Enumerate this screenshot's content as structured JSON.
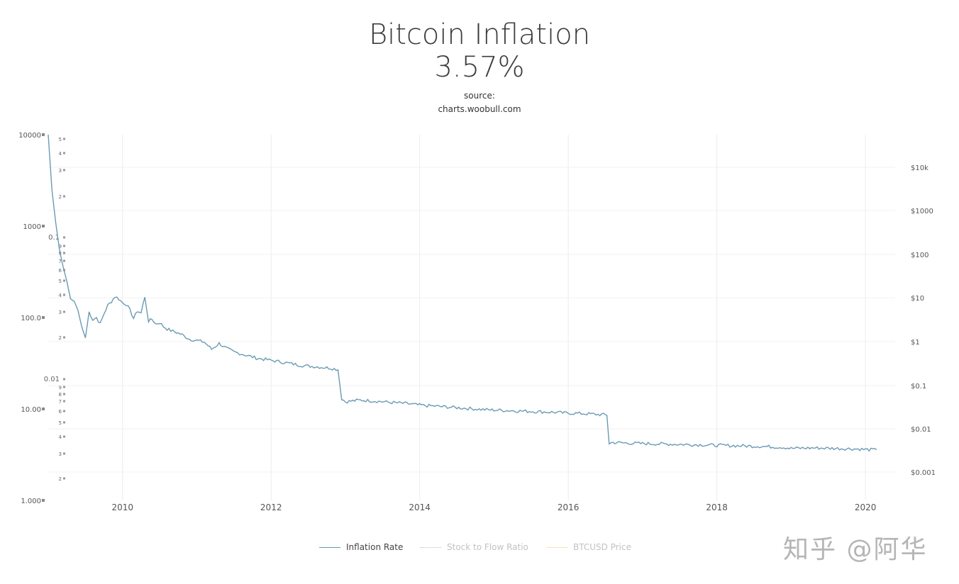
{
  "chart_data": {
    "type": "line",
    "title": "Bitcoin Inflation",
    "subtitle": "3.57%",
    "source_label": "source:",
    "source_url": "charts.woobull.com",
    "x_ticks": [
      "2010",
      "2012",
      "2014",
      "2016",
      "2018",
      "2020"
    ],
    "xlim": [
      2009.0,
      2020.4
    ],
    "y_left": {
      "scale": "log",
      "ylim": [
        1,
        10000
      ],
      "tick_labels": [
        "10000",
        "1000",
        "100.0",
        "10.00",
        "1.000"
      ]
    },
    "y_left_inner": {
      "labels": [
        "5",
        "4",
        "3",
        "2",
        "0.1",
        "9",
        "8",
        "7",
        "6",
        "5",
        "4",
        "3",
        "2",
        "0.01",
        "9",
        "8",
        "7",
        "6",
        "5",
        "4",
        "3",
        "2"
      ]
    },
    "y_right": {
      "scale": "log",
      "tick_labels": [
        "$10k",
        "$1000",
        "$100",
        "$10",
        "$1",
        "$0.1",
        "$0.01",
        "$0.001"
      ]
    },
    "series": [
      {
        "name": "Inflation Rate",
        "color": "#6b9ab3",
        "x": [
          2009.0,
          2009.05,
          2009.1,
          2009.15,
          2009.2,
          2009.25,
          2009.3,
          2009.35,
          2009.4,
          2009.45,
          2009.5,
          2009.55,
          2009.6,
          2009.65,
          2009.7,
          2009.75,
          2009.8,
          2009.85,
          2009.9,
          2009.95,
          2010.0,
          2010.05,
          2010.1,
          2010.15,
          2010.2,
          2010.25,
          2010.3,
          2010.35,
          2010.4,
          2010.45,
          2010.5,
          2010.55,
          2010.6,
          2010.65,
          2010.7,
          2010.8,
          2010.9,
          2011.0,
          2011.1,
          2011.2,
          2011.3,
          2011.4,
          2011.5,
          2011.6,
          2011.7,
          2011.8,
          2012.0,
          2012.2,
          2012.4,
          2012.6,
          2012.8,
          2012.9,
          2012.95,
          2013.0,
          2013.2,
          2013.4,
          2013.6,
          2013.8,
          2014.0,
          2014.3,
          2014.6,
          2014.9,
          2015.2,
          2015.5,
          2015.8,
          2016.0,
          2016.2,
          2016.4,
          2016.52,
          2016.55,
          2016.6,
          2016.9,
          2017.2,
          2017.5,
          2017.8,
          2018.0,
          2018.3,
          2018.6,
          2018.9,
          2019.0,
          2019.3,
          2019.6,
          2019.9,
          2020.0,
          2020.15
        ],
        "y": [
          10000,
          2500,
          1100,
          560,
          360,
          250,
          160,
          150,
          120,
          80,
          60,
          115,
          95,
          100,
          85,
          110,
          135,
          150,
          170,
          160,
          145,
          140,
          120,
          98,
          118,
          112,
          170,
          92,
          95,
          85,
          88,
          80,
          75,
          72,
          70,
          65,
          58,
          56,
          54,
          45,
          52,
          46,
          42,
          40,
          38,
          36,
          34,
          32,
          30,
          29,
          28,
          27,
          13,
          12,
          12.5,
          12.2,
          11.8,
          11.5,
          11,
          10.6,
          10.2,
          9.8,
          9.6,
          9.4,
          9.2,
          9.0,
          8.9,
          8.7,
          8.6,
          4.2,
          4.3,
          4.2,
          4.15,
          4.1,
          4.05,
          4.0,
          3.95,
          3.9,
          3.8,
          3.7,
          3.75,
          3.7,
          3.65,
          3.6,
          3.57
        ]
      },
      {
        "name": "Stock to Flow Ratio",
        "color": "#c9b6c9",
        "values": []
      },
      {
        "name": "BTCUSD Price",
        "color": "#f0e4b6",
        "values": []
      }
    ],
    "grid": true,
    "legend_position": "bottom-center"
  },
  "watermark": "知乎 @阿华"
}
